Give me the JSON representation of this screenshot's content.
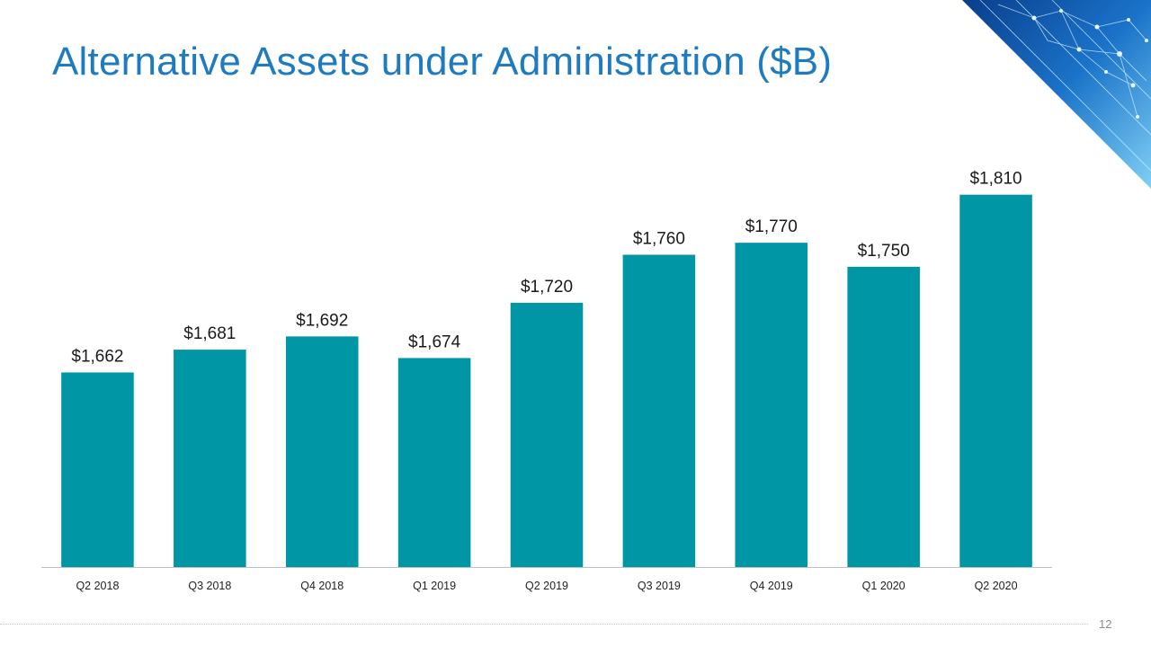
{
  "slide": {
    "title": "Alternative Assets under Administration ($B)",
    "page_number": "12"
  },
  "colors": {
    "title": "#1f7bbf",
    "bar": "#0096a5",
    "axis": "#bfbfbf",
    "label": "#1a1a1a",
    "tick": "#222222"
  },
  "decoration": {
    "corner_image": "blue-network-graphic"
  },
  "chart_data": {
    "type": "bar",
    "title": "",
    "xlabel": "",
    "ylabel": "",
    "categories": [
      "Q2 2018",
      "Q3 2018",
      "Q4 2018",
      "Q1 2019",
      "Q2 2019",
      "Q3 2019",
      "Q4 2019",
      "Q1 2020",
      "Q2 2020"
    ],
    "values": [
      1662,
      1681,
      1692,
      1674,
      1720,
      1760,
      1770,
      1750,
      1810
    ],
    "data_labels": [
      "$1,662",
      "$1,681",
      "$1,692",
      "$1,674",
      "$1,720",
      "$1,760",
      "$1,770",
      "$1,750",
      "$1,810"
    ],
    "ylim": [
      1500,
      1815
    ],
    "grid": false,
    "legend": "none"
  }
}
